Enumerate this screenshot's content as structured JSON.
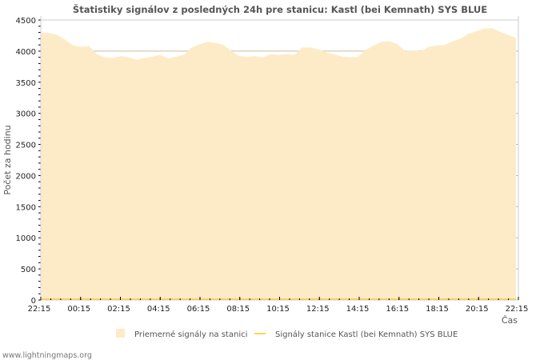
{
  "chart_data": {
    "type": "area",
    "title": "Štatistiky signálov z posledných 24h pre stanicu: Kastl (bei Kemnath) SYS BLUE",
    "xlabel": "Čas",
    "ylabel": "Počet za hodinu",
    "ylim": [
      0,
      4500
    ],
    "yticks": [
      0,
      500,
      1000,
      1500,
      2000,
      2500,
      3000,
      3500,
      4000,
      4500
    ],
    "xticks": [
      "22:15",
      "00:15",
      "02:15",
      "04:15",
      "06:15",
      "08:15",
      "10:15",
      "12:15",
      "14:15",
      "16:15",
      "18:15",
      "20:15",
      "22:15"
    ],
    "grid": true,
    "legend_position": "bottom",
    "series": [
      {
        "name": "Priemerné signály na stanici",
        "color": "#fdebc8",
        "kind": "area",
        "values": [
          4300,
          4290,
          4260,
          4180,
          4090,
          4070,
          4080,
          3950,
          3900,
          3890,
          3920,
          3900,
          3860,
          3890,
          3910,
          3940,
          3880,
          3910,
          3940,
          4060,
          4110,
          4150,
          4130,
          4100,
          4000,
          3920,
          3910,
          3920,
          3900,
          3950,
          3940,
          3950,
          3940,
          4060,
          4060,
          4030,
          3980,
          3950,
          3910,
          3900,
          3910,
          4020,
          4090,
          4150,
          4160,
          4110,
          4000,
          4010,
          4000,
          4070,
          4090,
          4100,
          4160,
          4200,
          4280,
          4320,
          4360,
          4370,
          4310,
          4260,
          4210
        ]
      },
      {
        "name": "Signály stanice Kastl (bei Kemnath) SYS BLUE",
        "color": "#ffd24d",
        "kind": "line",
        "values": [
          0,
          0,
          0,
          0,
          0,
          0,
          0,
          0,
          0,
          0,
          0,
          0,
          0,
          0,
          0,
          0,
          0,
          0,
          0,
          0,
          0,
          0,
          0,
          0,
          0,
          0,
          0,
          0,
          0,
          0,
          0,
          0,
          0,
          0,
          0,
          0,
          0,
          0,
          0,
          0,
          0,
          0,
          0,
          0,
          0,
          0,
          0,
          0,
          0,
          0,
          0,
          0,
          0,
          0,
          0,
          0,
          0,
          0,
          0,
          0,
          0
        ]
      }
    ]
  },
  "footer": "www.lightningmaps.org"
}
